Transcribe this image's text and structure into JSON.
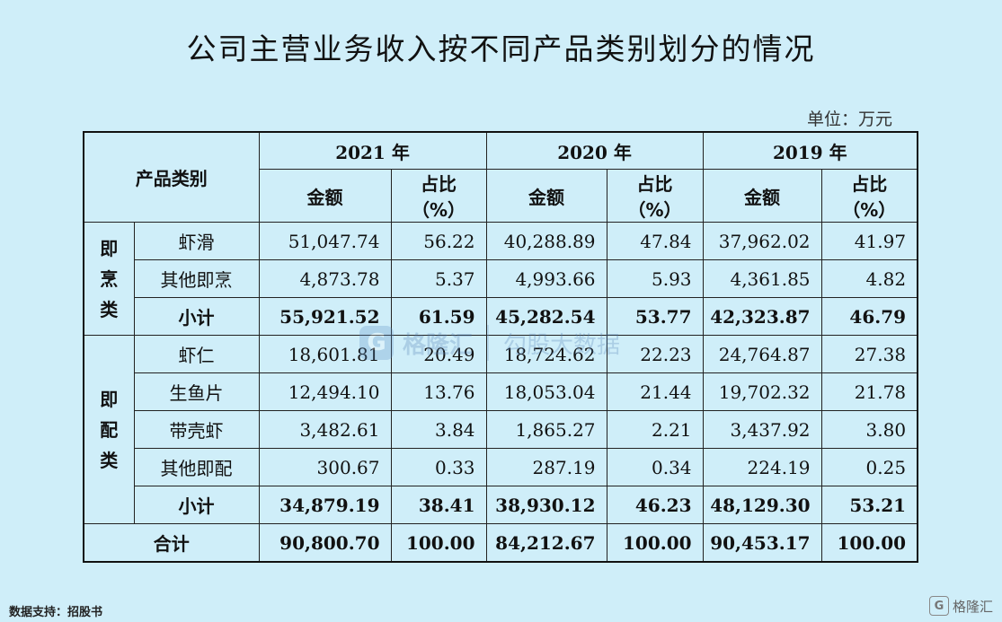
{
  "title": "公司主营业务收入按不同产品类别划分的情况",
  "unit": "单位：万元",
  "header": {
    "category": "产品类别",
    "years": [
      "2021 年",
      "2020 年",
      "2019 年"
    ],
    "amount": "金额",
    "share_line1": "占比",
    "share_line2": "（%）"
  },
  "groups": [
    {
      "name": "即烹类",
      "chars": [
        "即",
        "烹",
        "类"
      ],
      "rows": [
        {
          "item": "虾滑",
          "values": [
            "51,047.74",
            "56.22",
            "40,288.89",
            "47.84",
            "37,962.02",
            "41.97"
          ]
        },
        {
          "item": "其他即烹",
          "values": [
            "4,873.78",
            "5.37",
            "4,993.66",
            "5.93",
            "4,361.85",
            "4.82"
          ]
        },
        {
          "item": "小计",
          "values": [
            "55,921.52",
            "61.59",
            "45,282.54",
            "53.77",
            "42,323.87",
            "46.79"
          ]
        }
      ]
    },
    {
      "name": "即配类",
      "chars": [
        "即",
        "配",
        "类"
      ],
      "rows": [
        {
          "item": "虾仁",
          "values": [
            "18,601.81",
            "20.49",
            "18,724.62",
            "22.23",
            "24,764.87",
            "27.38"
          ]
        },
        {
          "item": "生鱼片",
          "values": [
            "12,494.10",
            "13.76",
            "18,053.04",
            "21.44",
            "19,702.32",
            "21.78"
          ]
        },
        {
          "item": "带壳虾",
          "values": [
            "3,482.61",
            "3.84",
            "1,865.27",
            "2.21",
            "3,437.92",
            "3.80"
          ]
        },
        {
          "item": "其他即配",
          "values": [
            "300.67",
            "0.33",
            "287.19",
            "0.34",
            "224.19",
            "0.25"
          ]
        },
        {
          "item": "小计",
          "values": [
            "34,879.19",
            "38.41",
            "38,930.12",
            "46.23",
            "48,129.30",
            "53.21"
          ]
        }
      ]
    }
  ],
  "total": {
    "item": "合计",
    "values": [
      "90,800.70",
      "100.00",
      "84,212.67",
      "100.00",
      "90,453.17",
      "100.00"
    ]
  },
  "watermark": {
    "logo": "G",
    "name": "格隆汇",
    "tagline": "勾股大数据"
  },
  "source": "数据支持：招股书",
  "brand": {
    "logo": "G",
    "name": "格隆汇"
  }
}
